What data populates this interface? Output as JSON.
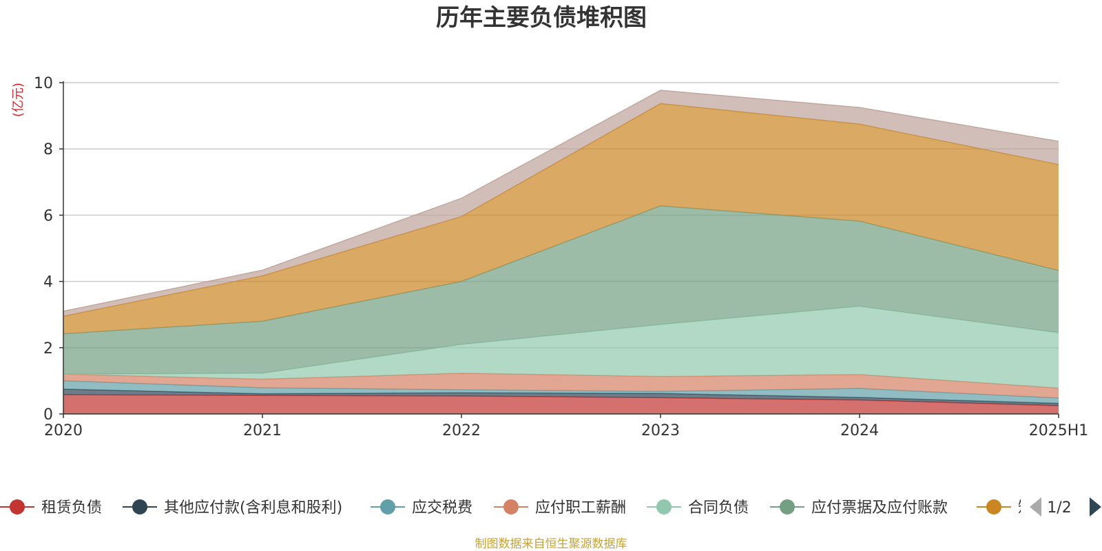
{
  "chart_data": {
    "type": "area",
    "stacked": true,
    "title": "历年主要负债堆积图",
    "unit_label": "(亿元)",
    "categories": [
      "2020",
      "2021",
      "2022",
      "2023",
      "2024",
      "2025H1"
    ],
    "ylim": [
      0,
      10
    ],
    "yticks": [
      0,
      2,
      4,
      6,
      8,
      10
    ],
    "grid": true,
    "series": [
      {
        "name": "租赁负债",
        "color": "#c23531",
        "values": [
          0.58,
          0.56,
          0.54,
          0.49,
          0.42,
          0.25
        ]
      },
      {
        "name": "其他应付款(含利息和股利)",
        "color": "#2f4554",
        "values": [
          0.17,
          0.05,
          0.1,
          0.13,
          0.08,
          0.07
        ]
      },
      {
        "name": "应交税费",
        "color": "#61a0a8",
        "values": [
          0.25,
          0.18,
          0.09,
          0.06,
          0.27,
          0.16
        ]
      },
      {
        "name": "应付职工薪酬",
        "color": "#d48265",
        "values": [
          0.2,
          0.26,
          0.5,
          0.45,
          0.42,
          0.3
        ]
      },
      {
        "name": "合同负债",
        "color": "#91c7ae",
        "values": [
          0.0,
          0.18,
          0.87,
          1.57,
          2.06,
          1.67
        ]
      },
      {
        "name": "应付票据及应付账款",
        "color": "#749f83",
        "values": [
          1.22,
          1.57,
          1.9,
          3.58,
          2.57,
          1.88
        ]
      },
      {
        "name": "短期借款",
        "color": "#ca8622",
        "values": [
          0.53,
          1.37,
          1.96,
          3.09,
          2.93,
          3.2
        ]
      },
      {
        "name": "",
        "color": "#bda29a",
        "values": [
          0.15,
          0.17,
          0.55,
          0.4,
          0.5,
          0.7
        ]
      }
    ]
  },
  "legend": {
    "visible_items": [
      "租赁负债",
      "其他应付款(含利息和股利)",
      "应交税费",
      "应付职工薪酬",
      "合同负债",
      "应付票据及应付账款",
      "短"
    ],
    "page_indicator": "1/2"
  },
  "source_note": "制图数据来自恒生聚源数据库"
}
